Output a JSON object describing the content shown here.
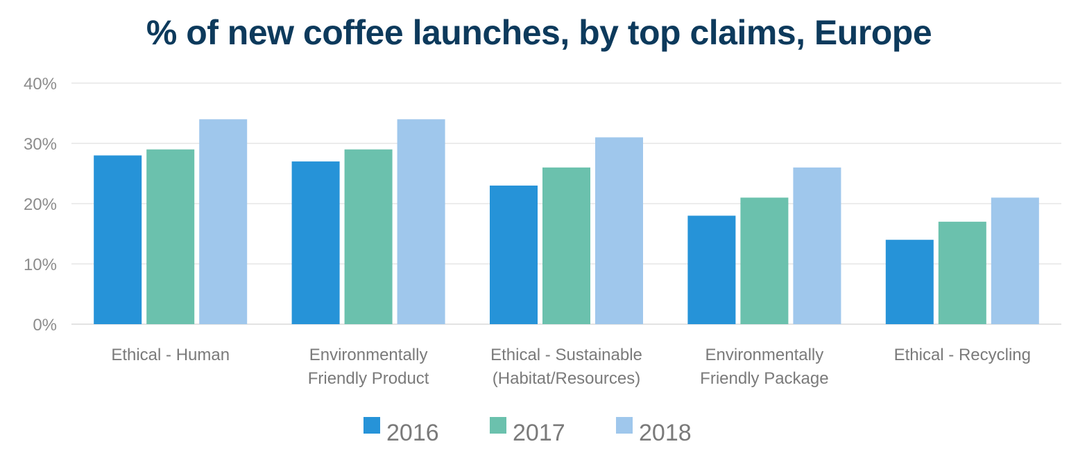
{
  "chart_data": {
    "type": "bar",
    "title": "% of new coffee launches, by top claims, Europe",
    "xlabel": "",
    "ylabel": "",
    "ylim": [
      0,
      40
    ],
    "yticks": [
      "0%",
      "10%",
      "20%",
      "30%",
      "40%"
    ],
    "ytick_values": [
      0,
      10,
      20,
      30,
      40
    ],
    "categories": [
      [
        "Ethical - Human"
      ],
      [
        "Environmentally",
        "Friendly Product"
      ],
      [
        "Ethical - Sustainable",
        "(Habitat/Resources)"
      ],
      [
        "Environmentally",
        "Friendly Package"
      ],
      [
        "Ethical - Recycling"
      ]
    ],
    "series": [
      {
        "name": "2016",
        "color": "#2693d8",
        "values": [
          28,
          27,
          23,
          18,
          14
        ]
      },
      {
        "name": "2017",
        "color": "#6bc1ad",
        "values": [
          29,
          29,
          26,
          21,
          17
        ]
      },
      {
        "name": "2018",
        "color": "#9fc7ec",
        "values": [
          34,
          34,
          31,
          26,
          21
        ]
      }
    ],
    "grid": true,
    "legend_position": "bottom-center"
  }
}
